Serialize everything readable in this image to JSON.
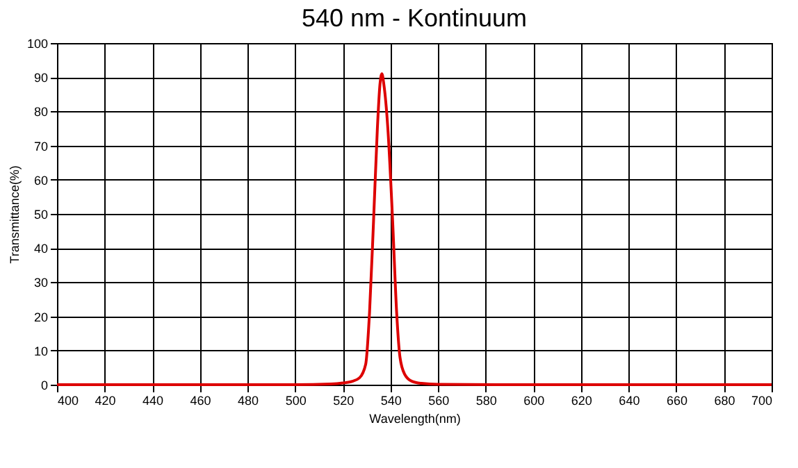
{
  "chart_data": {
    "type": "line",
    "title": "540 nm - Kontinuum",
    "xlabel": "Wavelength(nm)",
    "ylabel": "Transmittance(%)",
    "x": [
      400,
      500,
      515,
      520,
      524,
      527,
      529.6,
      531.2,
      532.9,
      534.5,
      535.6,
      536.4,
      537.2,
      538.9,
      540.9,
      542.6,
      544,
      546,
      549,
      553,
      560,
      600,
      700
    ],
    "series": [
      {
        "color": "#dd0000",
        "values": [
          0,
          0,
          0.2,
          0.5,
          1,
          2,
          6,
          21,
          48,
          75,
          88,
          91,
          88,
          75,
          48,
          21,
          8,
          3,
          1,
          0.4,
          0.1,
          0,
          0
        ]
      }
    ],
    "xlim": [
      400,
      700
    ],
    "xticks": [
      400,
      420,
      440,
      460,
      480,
      500,
      520,
      540,
      560,
      580,
      600,
      620,
      640,
      660,
      680,
      700
    ],
    "ylim": [
      0,
      100
    ],
    "yticks": [
      0,
      10,
      20,
      30,
      40,
      50,
      60,
      70,
      80,
      90,
      100
    ],
    "grid": true,
    "legend": false
  }
}
